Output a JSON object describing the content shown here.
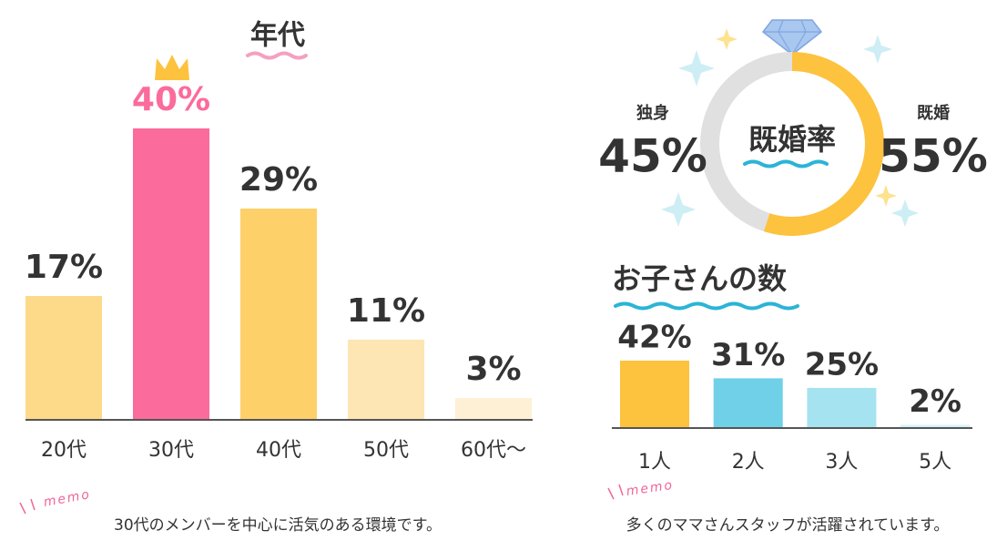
{
  "chart_data": [
    {
      "type": "bar",
      "title": "年代",
      "categories": [
        "20代",
        "30代",
        "40代",
        "50代",
        "60代〜"
      ],
      "values": [
        17,
        40,
        29,
        11,
        3
      ],
      "value_labels": [
        "17%",
        "40%",
        "29%",
        "11%",
        "3%"
      ],
      "colors": [
        "#fdd98a",
        "#fb6b9c",
        "#fdd06a",
        "#fde6b3",
        "#fdf0d5"
      ],
      "memo": "memo",
      "note": "30代のメンバーを中心に活気のある環境です。"
    },
    {
      "type": "pie",
      "title": "既婚率",
      "categories": [
        "独身",
        "既婚"
      ],
      "values": [
        45,
        55
      ],
      "value_labels": [
        "45%",
        "55%"
      ],
      "colors": [
        "#e0e0e0",
        "#fdc23e"
      ]
    },
    {
      "type": "bar",
      "title": "お子さんの数",
      "categories": [
        "1人",
        "2人",
        "3人",
        "5人"
      ],
      "values": [
        42,
        31,
        25,
        2
      ],
      "value_labels": [
        "42%",
        "31%",
        "25%",
        "2%"
      ],
      "colors": [
        "#fdc23e",
        "#6fd0e8",
        "#a6e3f0",
        "#d4f1f8"
      ],
      "memo": "memo",
      "note": "多くのママさんスタッフが活躍されています。"
    }
  ]
}
